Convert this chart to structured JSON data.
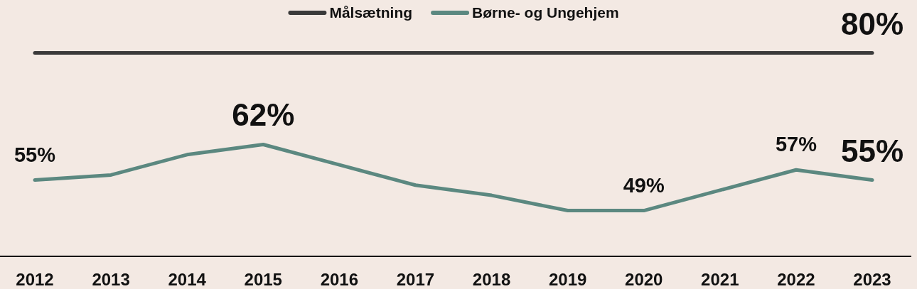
{
  "chart_data": {
    "type": "line",
    "categories": [
      "2012",
      "2013",
      "2014",
      "2015",
      "2016",
      "2017",
      "2018",
      "2019",
      "2020",
      "2021",
      "2022",
      "2023"
    ],
    "series": [
      {
        "name": "Målsætning",
        "color": "#3a3a3a",
        "values": [
          80,
          80,
          80,
          80,
          80,
          80,
          80,
          80,
          80,
          80,
          80,
          80
        ],
        "value_labels": [
          null,
          null,
          null,
          null,
          null,
          null,
          null,
          null,
          null,
          null,
          null,
          "80%"
        ]
      },
      {
        "name": "Børne- og Ungehjem",
        "color": "#5b8880",
        "values": [
          55,
          56,
          60,
          62,
          58,
          54,
          52,
          49,
          49,
          53,
          57,
          55
        ],
        "value_labels": [
          "55%",
          null,
          null,
          "62%",
          null,
          null,
          null,
          null,
          "49%",
          null,
          "57%",
          "55%"
        ]
      }
    ],
    "ylim": [
      40,
      90
    ],
    "legend": "top",
    "line_style": "solid"
  }
}
